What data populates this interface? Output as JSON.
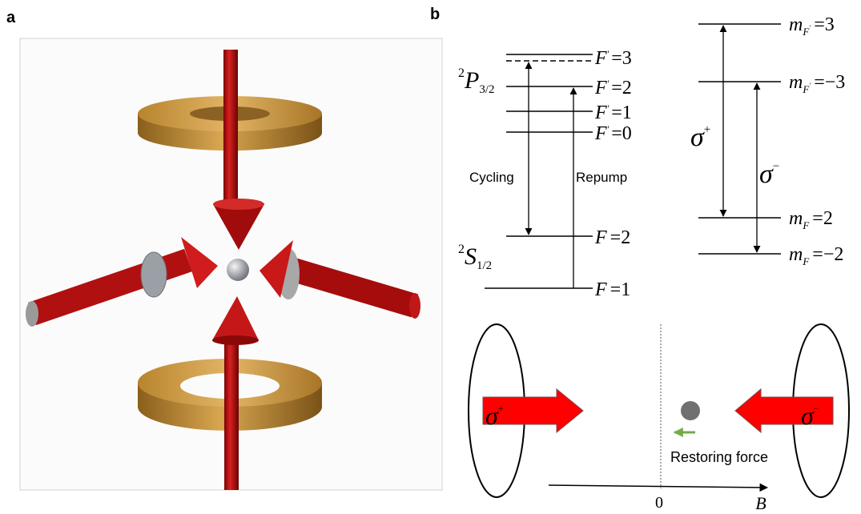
{
  "panel_a": {
    "label": "a"
  },
  "panel_b": {
    "label": "b",
    "hyperfine": {
      "terms": [
        {
          "superscript": "2",
          "letter": "P",
          "subscript": "3/2"
        },
        {
          "superscript": "2",
          "letter": "S",
          "subscript": "1/2"
        }
      ],
      "levels": [
        {
          "symbol": "F",
          "prime": "'",
          "value": "=3"
        },
        {
          "symbol": "F",
          "prime": "'",
          "value": "=2"
        },
        {
          "symbol": "F",
          "prime": "'",
          "value": "=1"
        },
        {
          "symbol": "F",
          "prime": "'",
          "value": "=0"
        },
        {
          "symbol": "F",
          "value": "=2"
        },
        {
          "symbol": "F",
          "value": "=1"
        }
      ],
      "transitions": [
        "Cycling",
        "Repump"
      ]
    },
    "zeeman": {
      "levels": [
        {
          "symbol": "m",
          "subscript": "F",
          "subscript_prime": "'",
          "value": "=3"
        },
        {
          "symbol": "m",
          "subscript": "F",
          "subscript_prime": "'",
          "value": "=−3"
        },
        {
          "symbol": "m",
          "subscript": "F",
          "value": "=2"
        },
        {
          "symbol": "m",
          "subscript": "F",
          "value": "=−2"
        }
      ],
      "transitions": [
        {
          "symbol": "σ",
          "superscript": "+"
        },
        {
          "symbol": "σ",
          "superscript": "−"
        }
      ]
    },
    "force": {
      "beams": [
        {
          "symbol": "σ",
          "superscript": "+"
        },
        {
          "symbol": "σ",
          "superscript": "−"
        }
      ],
      "annotation": "Restoring force",
      "axis": {
        "origin": "0",
        "label": "B"
      }
    }
  }
}
